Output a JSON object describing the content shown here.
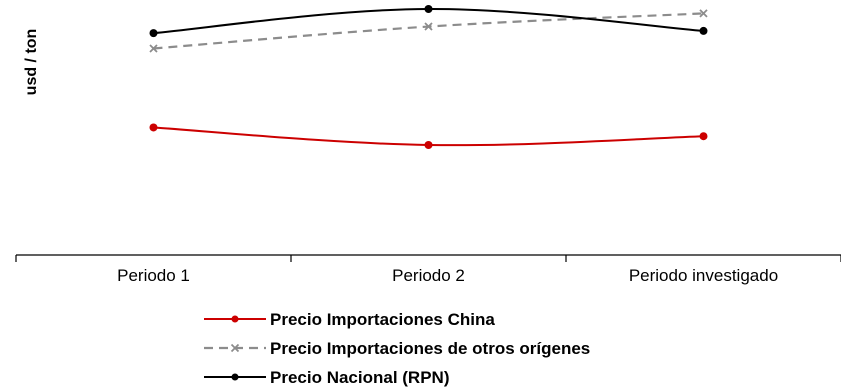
{
  "chart_data": {
    "type": "line",
    "ylabel": "usd / ton",
    "xlabel": "",
    "categories": [
      "Periodo 1",
      "Periodo 2",
      "Periodo investigado"
    ],
    "ylim": [
      0,
      100
    ],
    "series": [
      {
        "name": "Precio Importaciones China",
        "values": [
          46,
          38,
          42
        ],
        "color": "#cc0000",
        "dash": false,
        "marker": "circle"
      },
      {
        "name": "Precio Importaciones de otros orígenes",
        "values": [
          82,
          92,
          98
        ],
        "color": "#8c8c8c",
        "dash": true,
        "marker": "x"
      },
      {
        "name": "Precio Nacional (RPN)",
        "values": [
          89,
          100,
          90
        ],
        "color": "#000000",
        "dash": false,
        "marker": "circle"
      }
    ],
    "legend_position": "bottom",
    "grid": false,
    "y_ticks_visible": false
  }
}
